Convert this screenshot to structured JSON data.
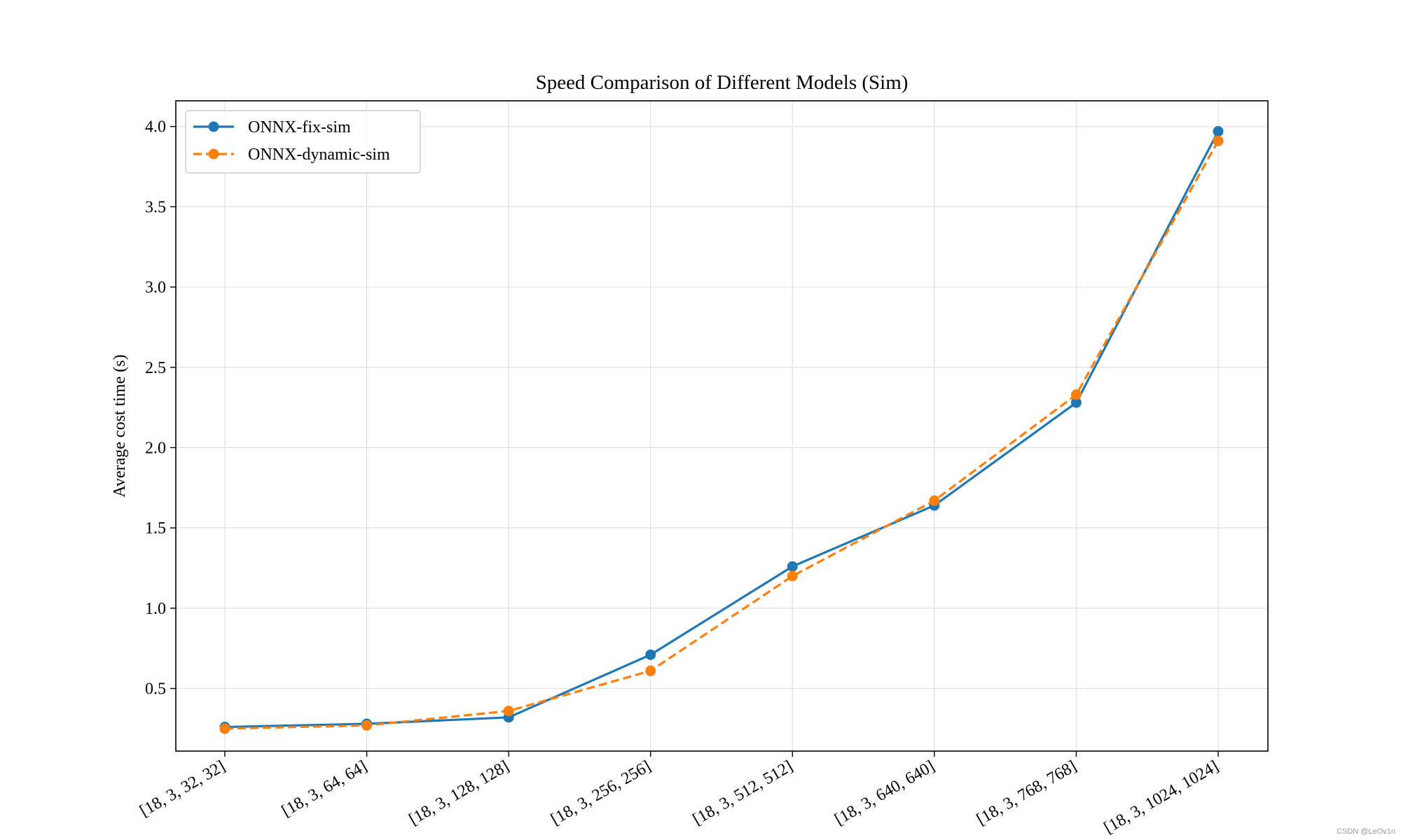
{
  "chart_data": {
    "type": "line",
    "title": "Speed Comparison of Different Models (Sim)",
    "xlabel": "",
    "ylabel": "Average cost time (s)",
    "categories": [
      "[18, 3, 32, 32]",
      "[18, 3, 64, 64]",
      "[18, 3, 128, 128]",
      "[18, 3, 256, 256]",
      "[18, 3, 512, 512]",
      "[18, 3, 640, 640]",
      "[18, 3, 768, 768]",
      "[18, 3, 1024, 1024]"
    ],
    "ylim": [
      0.11,
      4.16
    ],
    "yticks": [
      0.5,
      1.0,
      1.5,
      2.0,
      2.5,
      3.0,
      3.5,
      4.0
    ],
    "ytick_labels": [
      "0.5",
      "1.0",
      "1.5",
      "2.0",
      "2.5",
      "3.0",
      "3.5",
      "4.0"
    ],
    "grid": true,
    "legend_position": "upper-left",
    "series": [
      {
        "name": "ONNX-fix-sim",
        "color": "#1f77b4",
        "line_style": "solid",
        "marker": "circle",
        "values": [
          0.26,
          0.28,
          0.32,
          0.71,
          1.26,
          1.64,
          2.28,
          3.97
        ]
      },
      {
        "name": "ONNX-dynamic-sim",
        "color": "#ff7f0e",
        "line_style": "dashed",
        "marker": "circle",
        "values": [
          0.25,
          0.27,
          0.36,
          0.61,
          1.2,
          1.67,
          2.33,
          3.91
        ]
      }
    ]
  },
  "watermark": "CSDN @LeOv1n"
}
